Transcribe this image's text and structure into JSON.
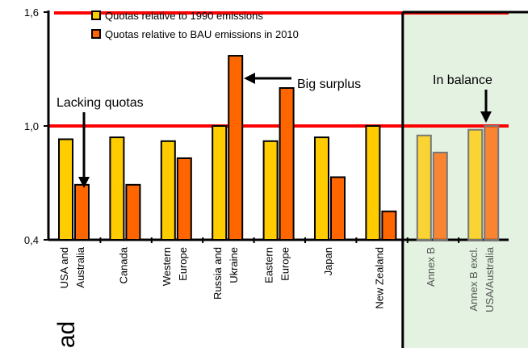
{
  "chart_data": {
    "type": "bar",
    "ylim": [
      0.4,
      1.6
    ],
    "yticks": [
      {
        "value": 0.4,
        "label": "0,4"
      },
      {
        "value": 1.0,
        "label": "1,0"
      },
      {
        "value": 1.6,
        "label": "1,6"
      }
    ],
    "reference_line": 1.0,
    "categories": [
      {
        "lines": [
          "USA and",
          "Australia"
        ],
        "shaded": false
      },
      {
        "lines": [
          "Canada"
        ],
        "shaded": false
      },
      {
        "lines": [
          "Western",
          "Europe"
        ],
        "shaded": false
      },
      {
        "lines": [
          "Russia and",
          "Ukraine"
        ],
        "shaded": false
      },
      {
        "lines": [
          "Eastern",
          "Europe"
        ],
        "shaded": false
      },
      {
        "lines": [
          "Japan"
        ],
        "shaded": false
      },
      {
        "lines": [
          "New Zealand"
        ],
        "shaded": false
      },
      {
        "lines": [
          "Annex B"
        ],
        "shaded": true
      },
      {
        "lines": [
          "Annex B excl.",
          "USA/Australia"
        ],
        "shaded": true
      }
    ],
    "series": [
      {
        "name": "Quotas relative to 1990 emissions",
        "color": "#FFCC00",
        "values": [
          0.93,
          0.94,
          0.92,
          1.0,
          0.92,
          0.94,
          1.0,
          0.95,
          0.98
        ]
      },
      {
        "name": "Quotas relative to BAU emissions in 2010",
        "color": "#FF6600",
        "values": [
          0.69,
          0.69,
          0.83,
          1.37,
          1.2,
          0.73,
          0.55,
          0.86,
          1.0
        ]
      }
    ],
    "legend_position": "top-left",
    "annotations": [
      {
        "text": "Lacking quotas"
      },
      {
        "text": "Big surplus"
      },
      {
        "text": "In balance"
      }
    ],
    "cut_text": "ad"
  },
  "colors": {
    "reference_line": "#FF0000",
    "shaded_region": "#E3F2E1",
    "shaded_border": "#000000"
  }
}
